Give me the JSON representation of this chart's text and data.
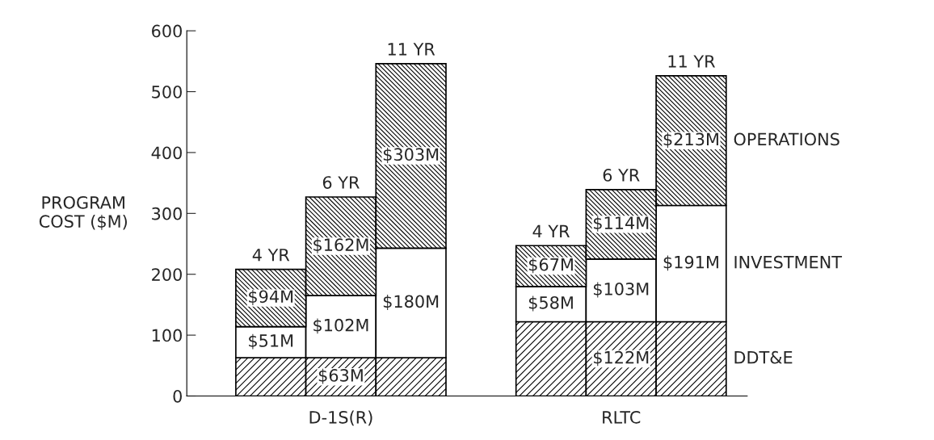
{
  "chart_data": {
    "type": "bar",
    "stacked": true,
    "ylabel": "PROGRAM\nCOST ($M)",
    "categories": [
      "4 YR",
      "6 YR",
      "11 YR",
      "4 YR",
      "6 YR",
      "11 YR"
    ],
    "annotations": [
      "D-1S(R)",
      "RLTC"
    ],
    "series": [
      {
        "name": "DDT&E",
        "color": "#000000",
        "values": [
          63,
          63,
          63,
          122,
          122,
          122
        ],
        "value_labels": [
          null,
          "$63M",
          null,
          null,
          "$122M",
          null
        ]
      },
      {
        "name": "INVESTMENT",
        "color": "#ffffff",
        "values": [
          51,
          102,
          180,
          58,
          103,
          191
        ],
        "value_labels": [
          "$51M",
          "$102M",
          "$180M",
          "$58M",
          "$103M",
          "$191M"
        ]
      },
      {
        "name": "OPERATIONS",
        "color": "#000000",
        "values": [
          94,
          162,
          303,
          67,
          114,
          213
        ],
        "value_labels": [
          "$94M",
          "$162M",
          "$303M",
          "$67M",
          "$114M",
          "$213M"
        ]
      }
    ],
    "ylim": [
      0,
      600
    ],
    "yticks": [
      0,
      100,
      200,
      300,
      400,
      500,
      600
    ],
    "tick_labels": "y",
    "grid": false
  }
}
